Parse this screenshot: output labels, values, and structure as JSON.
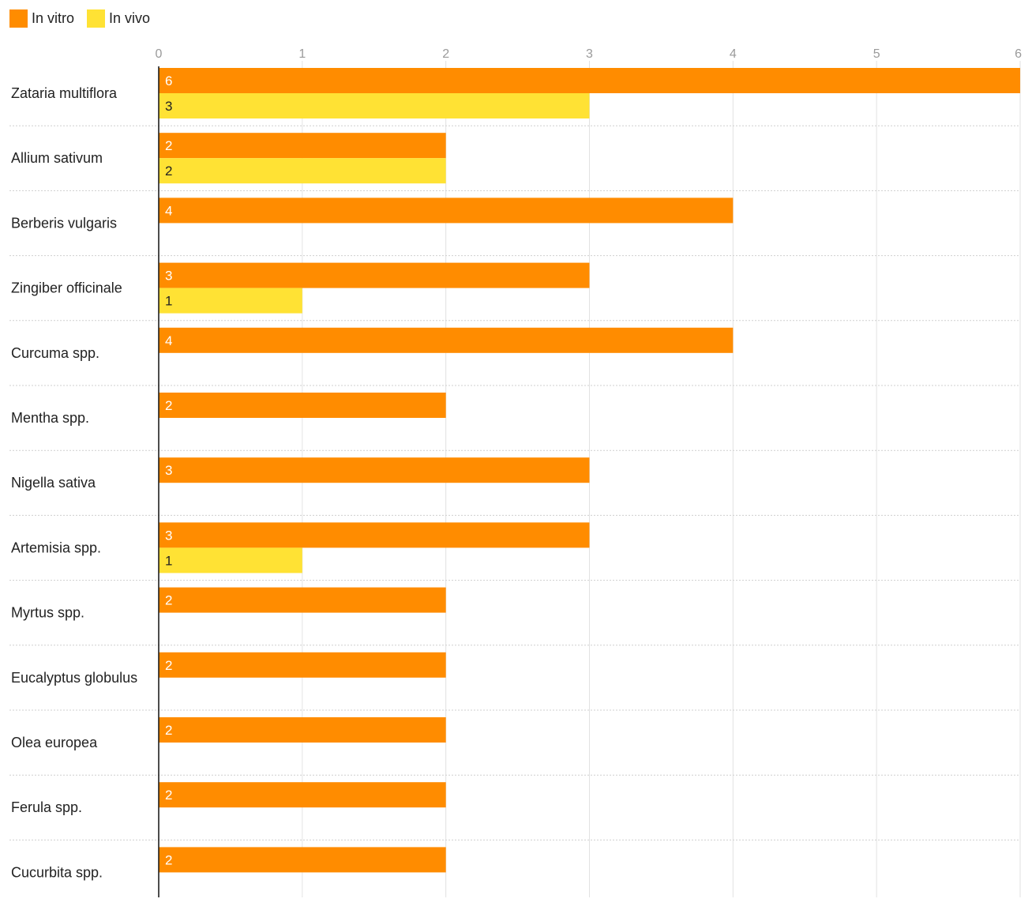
{
  "chart_data": {
    "type": "bar",
    "orientation": "horizontal",
    "categories": [
      "Zataria multiflora",
      "Allium sativum",
      "Berberis vulgaris",
      "Zingiber officinale",
      "Curcuma spp.",
      "Mentha spp.",
      "Nigella sativa",
      "Artemisia spp.",
      "Myrtus spp.",
      "Eucalyptus globulus",
      "Olea europea",
      "Ferula spp.",
      "Cucurbita spp."
    ],
    "series": [
      {
        "name": "In vitro",
        "color": "#FF8C00",
        "label_color": "#ffffff",
        "values": [
          6,
          2,
          4,
          3,
          4,
          2,
          3,
          3,
          2,
          2,
          2,
          2,
          2
        ]
      },
      {
        "name": "In vivo",
        "color": "#FFE234",
        "label_color": "#222222",
        "values": [
          3,
          2,
          null,
          1,
          null,
          null,
          null,
          1,
          null,
          null,
          null,
          null,
          null
        ]
      }
    ],
    "xlim": [
      0,
      6
    ],
    "xticks": [
      "0",
      "1",
      "2",
      "3",
      "4",
      "5",
      "6"
    ],
    "legend_position": "top-left",
    "title": "",
    "xlabel": "",
    "ylabel": ""
  }
}
